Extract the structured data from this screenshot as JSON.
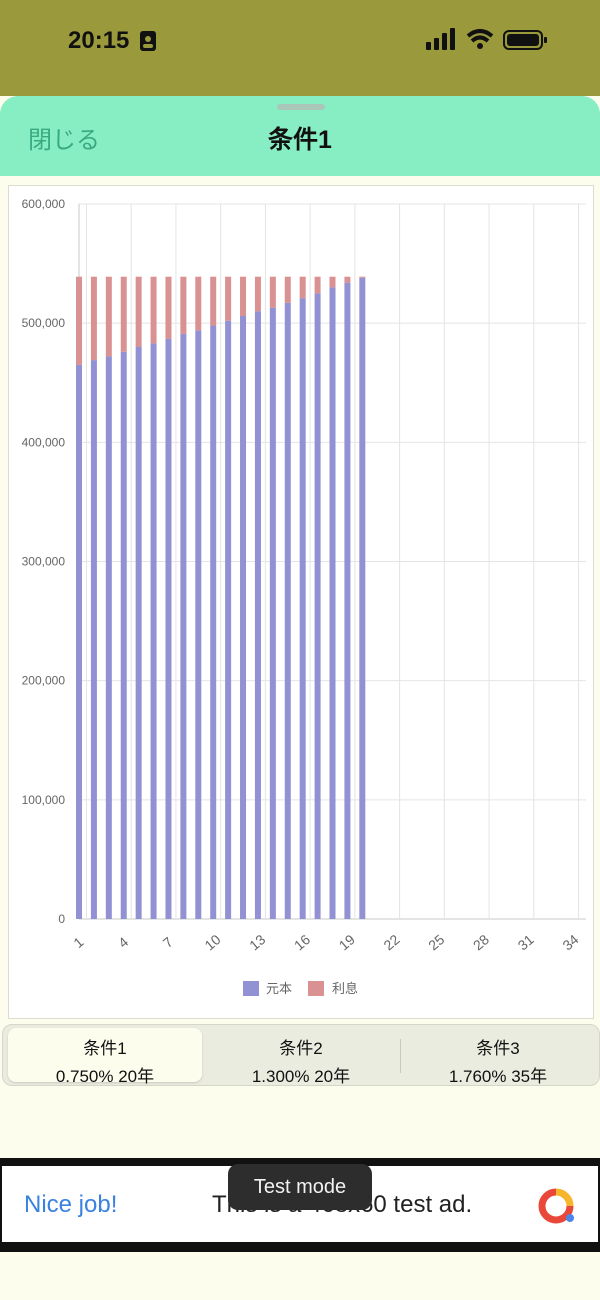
{
  "status_bar": {
    "time": "20:15"
  },
  "sheet": {
    "close_label": "閉じる",
    "title": "条件1"
  },
  "chart_data": {
    "type": "bar",
    "stacked": true,
    "x_tick_labels": [
      "1",
      "4",
      "7",
      "10",
      "13",
      "16",
      "19",
      "22",
      "25",
      "28",
      "31",
      "34"
    ],
    "y_tick_labels": [
      "0",
      "100,000",
      "200,000",
      "300,000",
      "400,000",
      "500,000",
      "600,000"
    ],
    "ylim": [
      0,
      600000
    ],
    "x_range": [
      1,
      35
    ],
    "grid": true,
    "legend_position": "bottom",
    "categories": [
      1,
      2,
      3,
      4,
      5,
      6,
      7,
      8,
      9,
      10,
      11,
      12,
      13,
      14,
      15,
      16,
      17,
      18,
      19,
      20
    ],
    "series": [
      {
        "name": "元本",
        "color": "#9191d4",
        "values": [
          465000,
          469000,
          472000,
          476000,
          480000,
          483000,
          487000,
          491000,
          494000,
          498000,
          502000,
          506000,
          510000,
          513000,
          517000,
          521000,
          525000,
          530000,
          534000,
          538000
        ]
      },
      {
        "name": "利息",
        "color": "#d99191",
        "values": [
          74000,
          70000,
          67000,
          63000,
          59000,
          56000,
          52000,
          48000,
          45000,
          41000,
          37000,
          33000,
          29000,
          26000,
          22000,
          18000,
          14000,
          9000,
          5000,
          1000
        ]
      }
    ]
  },
  "tabs": [
    {
      "name": "条件1",
      "detail": "0.750% 20年"
    },
    {
      "name": "条件2",
      "detail": "1.300% 20年"
    },
    {
      "name": "条件3",
      "detail": "1.760% 35年"
    }
  ],
  "ad": {
    "nice_job": "Nice job!",
    "text": "This is a 468x60 test ad.",
    "test_mode": "Test mode"
  }
}
